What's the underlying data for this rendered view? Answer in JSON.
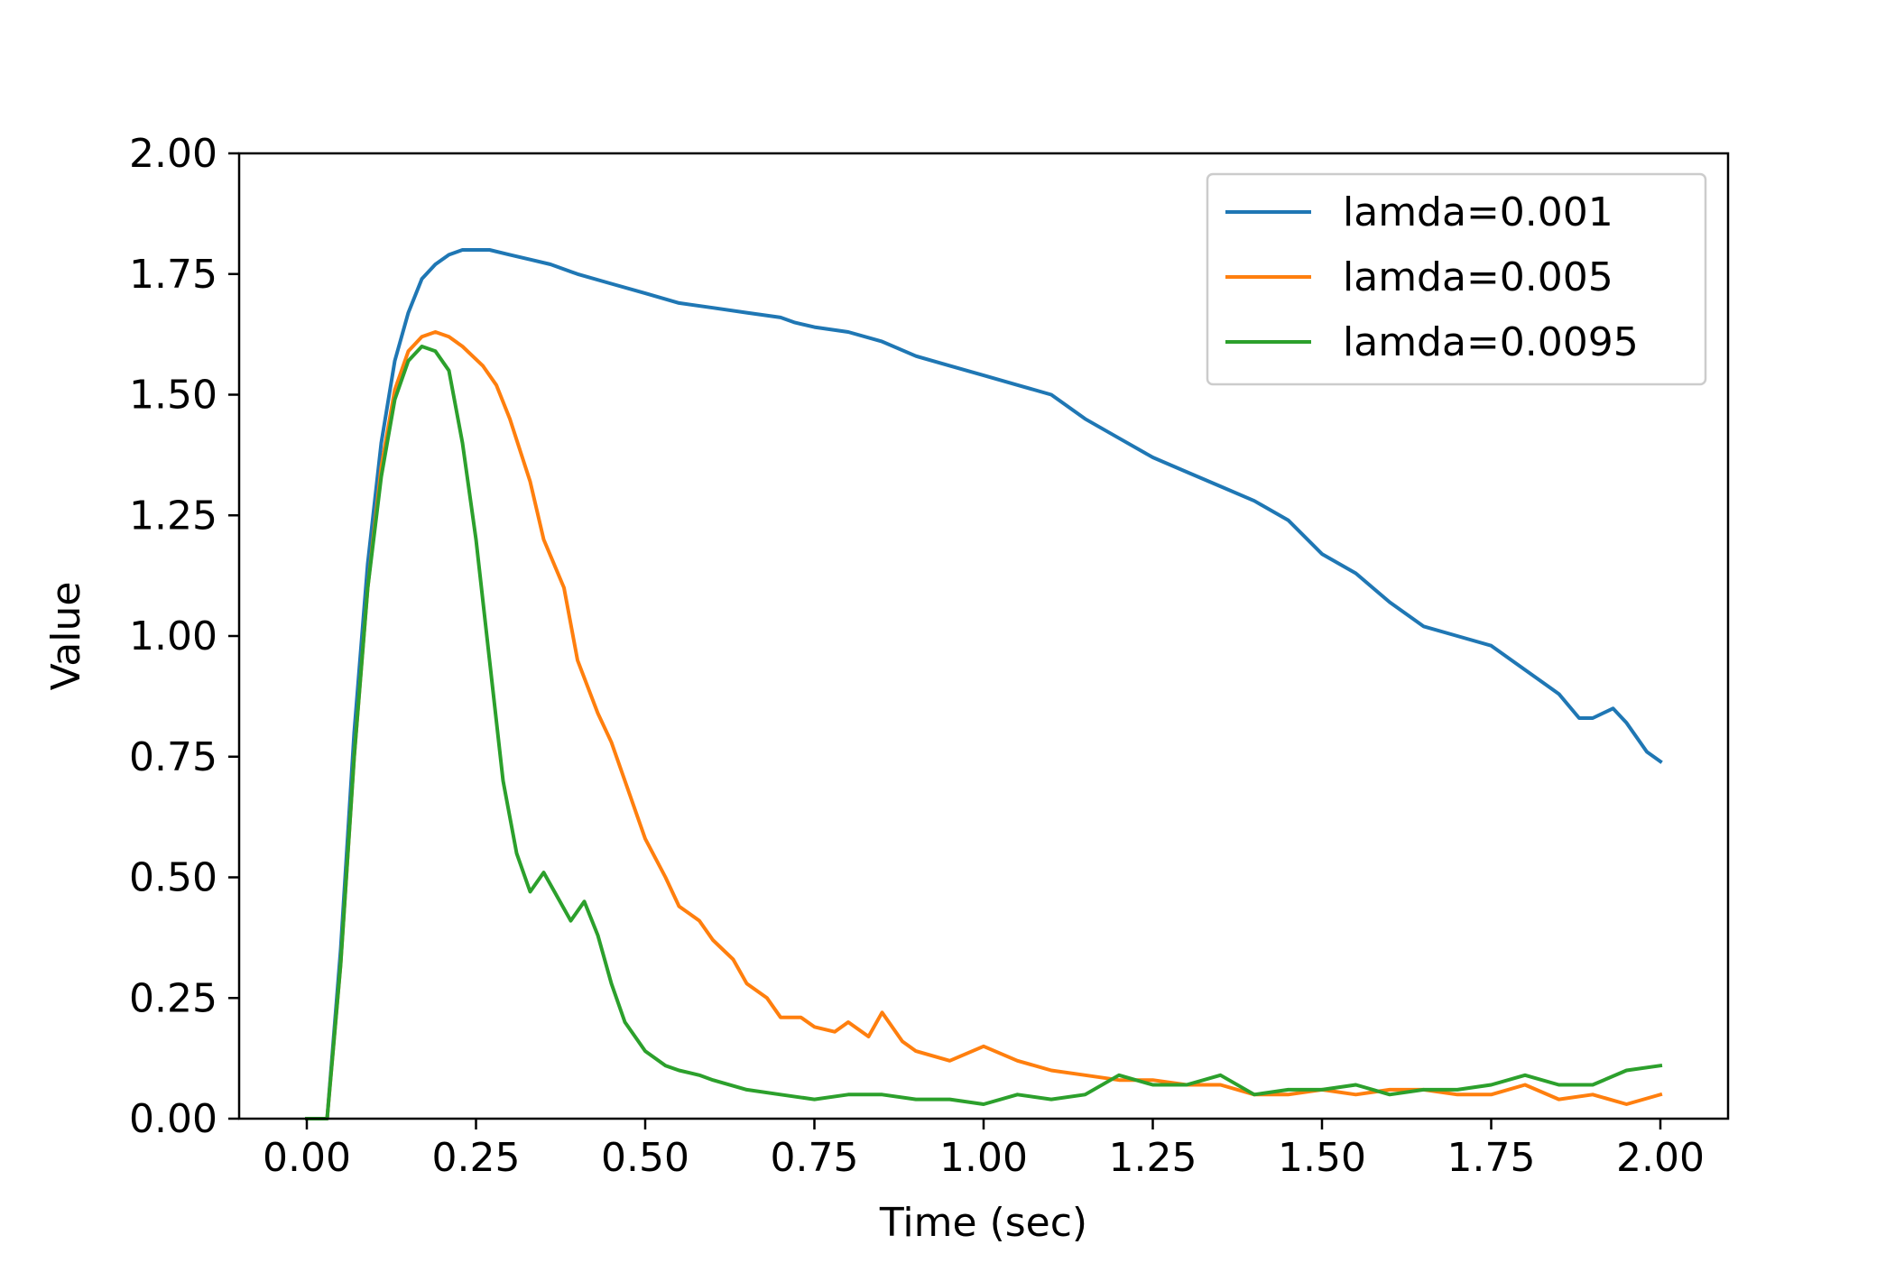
{
  "chart_data": {
    "type": "line",
    "title": "",
    "xlabel": "Time (sec)",
    "ylabel": "Value",
    "xlim": [
      -0.1,
      2.1
    ],
    "ylim": [
      0,
      2.0
    ],
    "xticks": [
      0.0,
      0.25,
      0.5,
      0.75,
      1.0,
      1.25,
      1.5,
      1.75,
      2.0
    ],
    "xtick_labels": [
      "0.00",
      "0.25",
      "0.50",
      "0.75",
      "1.00",
      "1.25",
      "1.50",
      "1.75",
      "2.00"
    ],
    "yticks": [
      0.0,
      0.25,
      0.5,
      0.75,
      1.0,
      1.25,
      1.5,
      1.75,
      2.0
    ],
    "ytick_labels": [
      "0.00",
      "0.25",
      "0.50",
      "0.75",
      "1.00",
      "1.25",
      "1.50",
      "1.75",
      "2.00"
    ],
    "grid": false,
    "legend_position": "upper right",
    "series": [
      {
        "name": "lamda=0.001",
        "color": "#1f77b4",
        "x": [
          0,
          0.03,
          0.05,
          0.07,
          0.09,
          0.11,
          0.13,
          0.15,
          0.17,
          0.19,
          0.21,
          0.23,
          0.25,
          0.27,
          0.3,
          0.33,
          0.36,
          0.4,
          0.45,
          0.5,
          0.55,
          0.6,
          0.65,
          0.7,
          0.72,
          0.75,
          0.8,
          0.85,
          0.9,
          0.95,
          1.0,
          1.05,
          1.1,
          1.15,
          1.2,
          1.25,
          1.3,
          1.35,
          1.4,
          1.45,
          1.5,
          1.55,
          1.6,
          1.65,
          1.7,
          1.75,
          1.8,
          1.85,
          1.88,
          1.9,
          1.93,
          1.95,
          1.98,
          2.0
        ],
        "y": [
          0,
          0.0,
          0.35,
          0.8,
          1.15,
          1.4,
          1.57,
          1.67,
          1.74,
          1.77,
          1.79,
          1.8,
          1.8,
          1.8,
          1.79,
          1.78,
          1.77,
          1.75,
          1.73,
          1.71,
          1.69,
          1.68,
          1.67,
          1.66,
          1.65,
          1.64,
          1.63,
          1.61,
          1.58,
          1.56,
          1.54,
          1.52,
          1.5,
          1.45,
          1.41,
          1.37,
          1.34,
          1.31,
          1.28,
          1.24,
          1.17,
          1.13,
          1.07,
          1.02,
          1.0,
          0.98,
          0.93,
          0.88,
          0.83,
          0.83,
          0.85,
          0.82,
          0.76,
          0.74
        ]
      },
      {
        "name": "lamda=0.005",
        "color": "#ff7f0e",
        "x": [
          0,
          0.03,
          0.05,
          0.07,
          0.09,
          0.11,
          0.13,
          0.15,
          0.17,
          0.19,
          0.21,
          0.23,
          0.26,
          0.28,
          0.3,
          0.33,
          0.35,
          0.38,
          0.4,
          0.43,
          0.45,
          0.48,
          0.5,
          0.53,
          0.55,
          0.58,
          0.6,
          0.63,
          0.65,
          0.68,
          0.7,
          0.73,
          0.75,
          0.78,
          0.8,
          0.83,
          0.85,
          0.88,
          0.9,
          0.95,
          1.0,
          1.05,
          1.1,
          1.15,
          1.2,
          1.25,
          1.3,
          1.35,
          1.4,
          1.45,
          1.5,
          1.55,
          1.6,
          1.65,
          1.7,
          1.75,
          1.8,
          1.85,
          1.9,
          1.95,
          2.0
        ],
        "y": [
          0,
          0.0,
          0.32,
          0.75,
          1.1,
          1.35,
          1.51,
          1.59,
          1.62,
          1.63,
          1.62,
          1.6,
          1.56,
          1.52,
          1.45,
          1.32,
          1.2,
          1.1,
          0.95,
          0.84,
          0.78,
          0.66,
          0.58,
          0.5,
          0.44,
          0.41,
          0.37,
          0.33,
          0.28,
          0.25,
          0.21,
          0.21,
          0.19,
          0.18,
          0.2,
          0.17,
          0.22,
          0.16,
          0.14,
          0.12,
          0.15,
          0.12,
          0.1,
          0.09,
          0.08,
          0.08,
          0.07,
          0.07,
          0.05,
          0.05,
          0.06,
          0.05,
          0.06,
          0.06,
          0.05,
          0.05,
          0.07,
          0.04,
          0.05,
          0.03,
          0.05
        ]
      },
      {
        "name": "lamda=0.0095",
        "color": "#2ca02c",
        "x": [
          0,
          0.03,
          0.05,
          0.07,
          0.09,
          0.11,
          0.13,
          0.15,
          0.17,
          0.19,
          0.21,
          0.23,
          0.25,
          0.27,
          0.29,
          0.31,
          0.33,
          0.35,
          0.37,
          0.39,
          0.41,
          0.43,
          0.45,
          0.47,
          0.49,
          0.5,
          0.53,
          0.55,
          0.58,
          0.6,
          0.65,
          0.7,
          0.75,
          0.8,
          0.85,
          0.9,
          0.95,
          1.0,
          1.05,
          1.1,
          1.15,
          1.2,
          1.25,
          1.3,
          1.35,
          1.4,
          1.45,
          1.5,
          1.55,
          1.6,
          1.65,
          1.7,
          1.75,
          1.8,
          1.85,
          1.9,
          1.95,
          2.0
        ],
        "y": [
          0,
          0.0,
          0.32,
          0.75,
          1.1,
          1.33,
          1.49,
          1.57,
          1.6,
          1.59,
          1.55,
          1.4,
          1.2,
          0.95,
          0.7,
          0.55,
          0.47,
          0.51,
          0.46,
          0.41,
          0.45,
          0.38,
          0.28,
          0.2,
          0.16,
          0.14,
          0.11,
          0.1,
          0.09,
          0.08,
          0.06,
          0.05,
          0.04,
          0.05,
          0.05,
          0.04,
          0.04,
          0.03,
          0.05,
          0.04,
          0.05,
          0.09,
          0.07,
          0.07,
          0.09,
          0.05,
          0.06,
          0.06,
          0.07,
          0.05,
          0.06,
          0.06,
          0.07,
          0.09,
          0.07,
          0.07,
          0.1,
          0.11
        ]
      }
    ]
  }
}
